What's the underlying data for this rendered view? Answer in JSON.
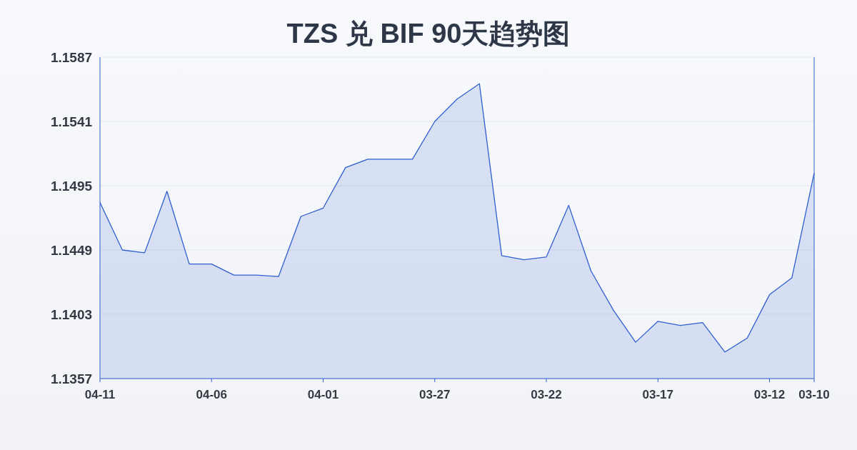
{
  "chart_data": {
    "type": "area",
    "title": "TZS 兑 BIF 90天趋势图",
    "categories": [
      "04-11",
      null,
      null,
      null,
      null,
      "04-06",
      null,
      null,
      null,
      null,
      "04-01",
      null,
      null,
      null,
      null,
      "03-27",
      null,
      null,
      null,
      null,
      "03-22",
      null,
      null,
      null,
      null,
      "03-17",
      null,
      null,
      null,
      null,
      "03-12",
      null,
      "03-10"
    ],
    "values": [
      1.1483,
      1.1449,
      1.1447,
      1.1491,
      1.1439,
      1.1439,
      1.1431,
      1.1431,
      1.143,
      1.1473,
      1.1479,
      1.1508,
      1.1514,
      1.1514,
      1.1514,
      1.1541,
      1.1557,
      1.1568,
      1.1445,
      1.1442,
      1.1444,
      1.1481,
      1.1434,
      1.1406,
      1.1383,
      1.1398,
      1.1395,
      1.1397,
      1.1376,
      1.1386,
      1.1417,
      1.1429,
      1.1504
    ],
    "color": "#2f5fd0",
    "ylim": [
      1.1357,
      1.1587
    ],
    "yticks": [
      1.1357,
      1.1403,
      1.1449,
      1.1495,
      1.1541,
      1.1587
    ],
    "grid": "y"
  }
}
